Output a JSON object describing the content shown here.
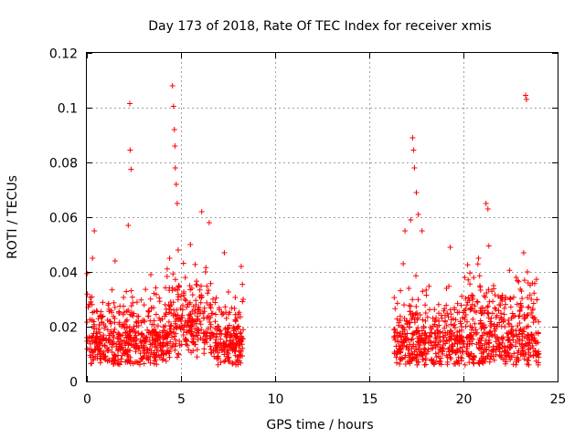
{
  "chart_data": {
    "type": "scatter",
    "title": "Day 173 of 2018, Rate Of TEC Index for receiver xmis",
    "xlabel": "GPS time / hours",
    "ylabel": "ROTI / TECUs",
    "xlim": [
      0,
      25
    ],
    "ylim": [
      0,
      0.12
    ],
    "xticks": [
      0,
      5,
      10,
      15,
      20,
      25
    ],
    "xtick_labels": [
      "0",
      "5",
      "10",
      "15",
      "20",
      "25"
    ],
    "yticks": [
      0,
      0.02,
      0.04,
      0.06,
      0.08,
      0.1,
      0.12
    ],
    "ytick_labels": [
      "0",
      "0.02",
      "0.04",
      "0.06",
      "0.08",
      "0.1",
      "0.12"
    ],
    "grid": true,
    "marker": "plus",
    "color": "#ff0000",
    "series": [
      {
        "name": "ROTI",
        "x": [
          0.1,
          0.3,
          0.4,
          0.5,
          0.6,
          0.9,
          1.2,
          1.5,
          1.7,
          2.0,
          2.2,
          2.28,
          2.3,
          2.35,
          2.5,
          2.8,
          3.1,
          3.4,
          3.6,
          3.9,
          4.2,
          4.4,
          4.55,
          4.6,
          4.65,
          4.68,
          4.7,
          4.75,
          4.8,
          4.85,
          4.9,
          5.0,
          5.2,
          5.5,
          5.8,
          6.1,
          6.3,
          6.5,
          6.7,
          7.0,
          7.3,
          7.6,
          7.9,
          8.2,
          8.3,
          16.5,
          16.8,
          16.9,
          17.1,
          17.2,
          17.3,
          17.35,
          17.4,
          17.5,
          17.6,
          17.8,
          18.0,
          18.3,
          18.6,
          18.9,
          19.1,
          19.3,
          19.6,
          19.9,
          20.2,
          20.5,
          20.8,
          21.0,
          21.2,
          21.3,
          21.35,
          21.4,
          21.6,
          21.9,
          22.2,
          22.5,
          22.8,
          23.0,
          23.2,
          23.3,
          23.35,
          23.4,
          23.6,
          23.8,
          24.0
        ],
        "y": [
          0.028,
          0.045,
          0.055,
          0.018,
          0.012,
          0.021,
          0.015,
          0.044,
          0.025,
          0.014,
          0.057,
          0.1015,
          0.0845,
          0.0775,
          0.02,
          0.012,
          0.016,
          0.039,
          0.019,
          0.014,
          0.025,
          0.045,
          0.108,
          0.1005,
          0.092,
          0.086,
          0.078,
          0.072,
          0.065,
          0.048,
          0.035,
          0.022,
          0.03,
          0.05,
          0.028,
          0.062,
          0.04,
          0.058,
          0.03,
          0.02,
          0.047,
          0.015,
          0.013,
          0.042,
          0.03,
          0.015,
          0.043,
          0.055,
          0.034,
          0.059,
          0.089,
          0.0845,
          0.078,
          0.069,
          0.061,
          0.055,
          0.025,
          0.012,
          0.02,
          0.01,
          0.034,
          0.049,
          0.015,
          0.02,
          0.012,
          0.03,
          0.045,
          0.025,
          0.065,
          0.063,
          0.0495,
          0.018,
          0.035,
          0.028,
          0.02,
          0.03,
          0.038,
          0.026,
          0.047,
          0.1045,
          0.103,
          0.04,
          0.025,
          0.015,
          0.01
        ]
      }
    ]
  }
}
